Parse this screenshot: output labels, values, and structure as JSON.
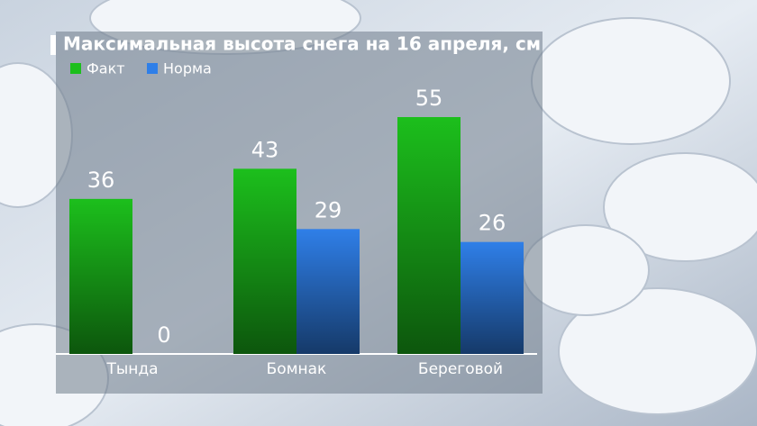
{
  "chart_data": {
    "type": "bar",
    "title": "Максимальная высота снега на 16 апреля, см",
    "categories": [
      "Тында",
      "Бомнак",
      "Береговой"
    ],
    "series": [
      {
        "name": "Факт",
        "color": "#1cbf1c",
        "values": [
          36,
          43,
          55
        ]
      },
      {
        "name": "Норма",
        "color": "#2f7fe8",
        "values": [
          0,
          29,
          26
        ]
      }
    ]
  }
}
